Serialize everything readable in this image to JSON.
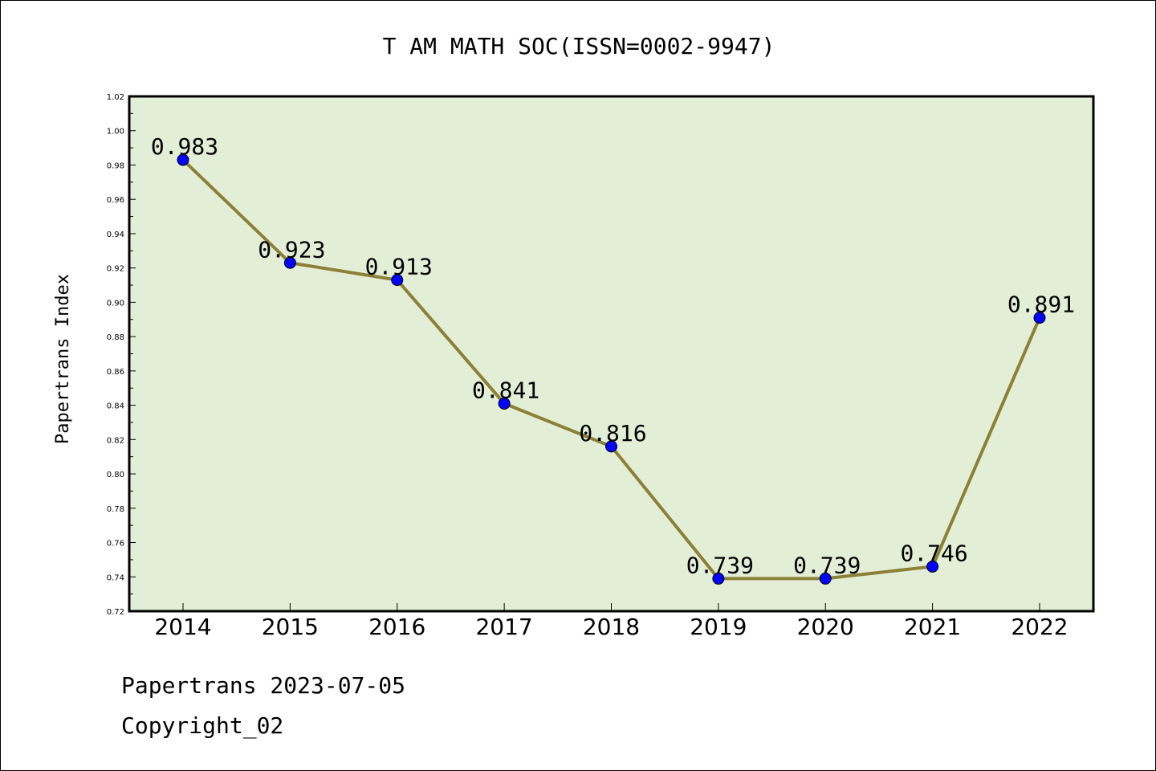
{
  "chart_data": {
    "type": "line",
    "title": "T AM MATH SOC(ISSN=0002-9947)",
    "xlabel": "",
    "ylabel": "Papertrans Index",
    "categories": [
      "2014",
      "2015",
      "2016",
      "2017",
      "2018",
      "2019",
      "2020",
      "2021",
      "2022"
    ],
    "values": [
      0.983,
      0.923,
      0.913,
      0.841,
      0.816,
      0.739,
      0.739,
      0.746,
      0.891
    ],
    "data_labels": [
      "0.983",
      "0.923",
      "0.913",
      "0.841",
      "0.816",
      "0.739",
      "0.739",
      "0.746",
      "0.891"
    ],
    "ylim": [
      0.72,
      1.02
    ],
    "yticks": [
      "0.72",
      "0.74",
      "0.76",
      "0.78",
      "0.80",
      "0.82",
      "0.84",
      "0.86",
      "0.88",
      "0.90",
      "0.92",
      "0.94",
      "0.96",
      "0.98",
      "1.00",
      "1.02"
    ],
    "grid": false,
    "colors": {
      "plot_background": "#e2efd6",
      "line": "#8c7f36",
      "marker": "#0000ff"
    }
  },
  "footer": {
    "line1": "Papertrans 2023-07-05",
    "line2": "Copyright_02"
  }
}
